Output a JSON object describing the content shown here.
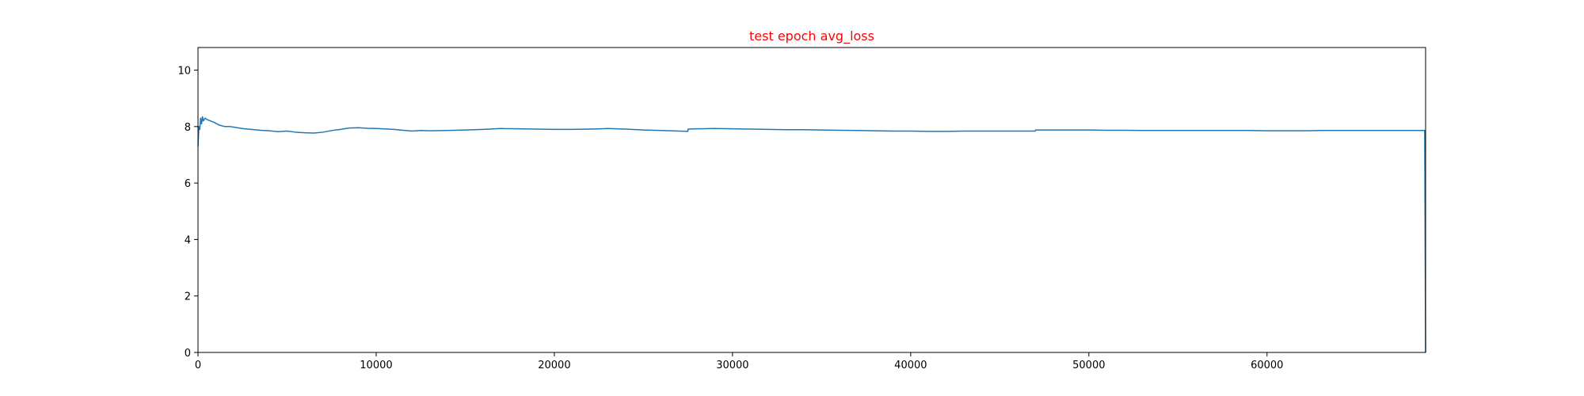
{
  "chart_data": {
    "type": "line",
    "title": "test epoch avg_loss",
    "title_color": "#ff0000",
    "xlabel": "",
    "ylabel": "",
    "xlim": [
      0,
      68900
    ],
    "ylim": [
      0,
      10.8
    ],
    "xticks": [
      0,
      10000,
      20000,
      30000,
      40000,
      50000,
      60000
    ],
    "xtick_labels": [
      "0",
      "10000",
      "20000",
      "30000",
      "40000",
      "50000",
      "60000"
    ],
    "yticks": [
      0,
      2,
      4,
      6,
      8,
      10
    ],
    "ytick_labels": [
      "0",
      "2",
      "4",
      "6",
      "8",
      "10"
    ],
    "grid": false,
    "line_color": "#1f77b4",
    "series": [
      {
        "x": [
          0,
          50,
          100,
          150,
          200,
          250,
          300,
          400,
          500,
          700,
          900,
          1200,
          1500,
          1800,
          2000,
          2300,
          2600,
          3000,
          3500,
          4000,
          4500,
          5000,
          5500,
          6000,
          6500,
          7000,
          7500,
          8000,
          8500,
          9000,
          9500,
          10000,
          11000,
          12000,
          12500,
          13000,
          14000,
          15000,
          16000,
          17000,
          18000,
          19000,
          20000,
          21000,
          22000,
          23000,
          24000,
          25000,
          26000,
          27000,
          27490,
          27510,
          28000,
          29000,
          30000,
          31000,
          32000,
          33000,
          34000,
          35000,
          36000,
          37000,
          38000,
          39000,
          40000,
          41000,
          42000,
          43000,
          44000,
          45000,
          46000,
          46990,
          47010,
          48000,
          49000,
          50000,
          51000,
          52000,
          53000,
          54000,
          55000,
          56000,
          57000,
          58000,
          59000,
          60000,
          61000,
          62000,
          63000,
          64000,
          65000,
          66000,
          67000,
          68000,
          68850,
          68900
        ],
        "y": [
          7.3,
          8.0,
          7.9,
          8.3,
          8.1,
          8.35,
          8.2,
          8.3,
          8.25,
          8.2,
          8.15,
          8.05,
          8.0,
          8.0,
          7.98,
          7.95,
          7.92,
          7.9,
          7.87,
          7.85,
          7.82,
          7.84,
          7.8,
          7.78,
          7.77,
          7.8,
          7.86,
          7.9,
          7.95,
          7.96,
          7.94,
          7.93,
          7.9,
          7.84,
          7.86,
          7.85,
          7.86,
          7.88,
          7.9,
          7.93,
          7.92,
          7.91,
          7.9,
          7.9,
          7.91,
          7.93,
          7.91,
          7.88,
          7.86,
          7.84,
          7.83,
          7.91,
          7.92,
          7.93,
          7.92,
          7.91,
          7.9,
          7.89,
          7.89,
          7.88,
          7.87,
          7.86,
          7.85,
          7.84,
          7.84,
          7.83,
          7.83,
          7.84,
          7.84,
          7.84,
          7.84,
          7.84,
          7.88,
          7.88,
          7.88,
          7.88,
          7.87,
          7.87,
          7.86,
          7.86,
          7.86,
          7.86,
          7.86,
          7.86,
          7.86,
          7.85,
          7.85,
          7.85,
          7.86,
          7.86,
          7.86,
          7.86,
          7.86,
          7.86,
          7.86,
          0.0
        ]
      }
    ]
  }
}
